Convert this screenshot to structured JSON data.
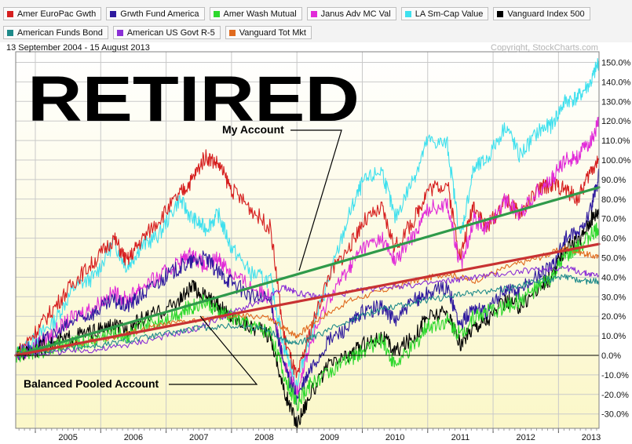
{
  "legend": {
    "row1": [
      {
        "label": "Amer EuroPac Gwth",
        "color": "#d61f1f"
      },
      {
        "label": "Grwth Fund America",
        "color": "#2e1a9e"
      },
      {
        "label": "Amer Wash Mutual",
        "color": "#2dd82d"
      },
      {
        "label": "Janus Adv MC Val",
        "color": "#e12bd8"
      },
      {
        "label": "LA Sm-Cap Value",
        "color": "#3fe0ee"
      },
      {
        "label": "Vanguard Index 500",
        "color": "#000000"
      }
    ],
    "row2": [
      {
        "label": "American Funds Bond",
        "color": "#1e8a8a"
      },
      {
        "label": "American US Govt R-5",
        "color": "#8a2fd6"
      },
      {
        "label": "Vanguard Tot Mkt",
        "color": "#e06a1e"
      }
    ]
  },
  "header": {
    "date_range": "13 September 2004 - 15 August 2013",
    "copyright": "Copyright, StockCharts.com"
  },
  "annotations": {
    "title": "RETIRED",
    "my_account": "My Account",
    "balanced": "Balanced Pooled Account"
  },
  "chart_data": {
    "type": "line",
    "title": "RETIRED",
    "x_range": [
      "2004-09-13",
      "2013-08-15"
    ],
    "x_ticks": [
      "2005",
      "2006",
      "2007",
      "2008",
      "2009",
      "2010",
      "2011",
      "2012",
      "2013"
    ],
    "y_ticks": [
      "150.0%",
      "140.0%",
      "130.0%",
      "120.0%",
      "110.0%",
      "100.0%",
      "90.0%",
      "80.0%",
      "70.0%",
      "60.0%",
      "50.0%",
      "40.0%",
      "30.0%",
      "20.0%",
      "10.0%",
      "0.0%",
      "-10.0%",
      "-20.0%",
      "-30.0%"
    ],
    "ylim": [
      -36,
      153
    ],
    "y_unit": "%",
    "grid": true,
    "legend_placement": "top",
    "series": [
      {
        "name": "LA Sm-Cap Value",
        "color": "#3fe0ee",
        "x": [
          2004.7,
          2005.0,
          2005.3,
          2005.6,
          2005.9,
          2006.2,
          2006.4,
          2006.6,
          2006.9,
          2007.2,
          2007.4,
          2007.6,
          2007.8,
          2008.0,
          2008.3,
          2008.6,
          2008.8,
          2009.0,
          2009.2,
          2009.5,
          2009.8,
          2010.0,
          2010.3,
          2010.5,
          2010.8,
          2011.0,
          2011.3,
          2011.5,
          2011.7,
          2011.9,
          2012.2,
          2012.4,
          2012.7,
          2012.9,
          2013.1,
          2013.3,
          2013.5,
          2013.62
        ],
        "y": [
          0,
          8,
          18,
          35,
          40,
          58,
          45,
          55,
          62,
          80,
          70,
          65,
          72,
          55,
          42,
          38,
          5,
          -15,
          10,
          40,
          72,
          88,
          95,
          70,
          92,
          110,
          108,
          60,
          95,
          100,
          118,
          102,
          115,
          118,
          130,
          132,
          140,
          151
        ]
      },
      {
        "name": "Amer EuroPac Gwth",
        "color": "#d61f1f",
        "x": [
          2004.7,
          2005.0,
          2005.3,
          2005.6,
          2005.9,
          2006.2,
          2006.4,
          2006.6,
          2006.9,
          2007.2,
          2007.4,
          2007.6,
          2007.8,
          2008.0,
          2008.3,
          2008.6,
          2008.8,
          2009.0,
          2009.2,
          2009.5,
          2009.8,
          2010.0,
          2010.3,
          2010.5,
          2010.8,
          2011.0,
          2011.3,
          2011.5,
          2011.7,
          2011.9,
          2012.2,
          2012.4,
          2012.7,
          2012.9,
          2013.1,
          2013.3,
          2013.5,
          2013.62
        ],
        "y": [
          0,
          12,
          25,
          38,
          48,
          60,
          48,
          58,
          70,
          82,
          90,
          102,
          98,
          85,
          75,
          65,
          10,
          -12,
          12,
          42,
          55,
          68,
          75,
          55,
          70,
          85,
          88,
          50,
          78,
          65,
          80,
          72,
          85,
          88,
          85,
          80,
          95,
          100
        ]
      },
      {
        "name": "Janus Adv MC Val",
        "color": "#e12bd8",
        "x": [
          2004.7,
          2005.0,
          2005.3,
          2005.6,
          2005.9,
          2006.2,
          2006.4,
          2006.6,
          2006.9,
          2007.2,
          2007.4,
          2007.6,
          2007.8,
          2008.0,
          2008.3,
          2008.6,
          2008.8,
          2009.0,
          2009.2,
          2009.5,
          2009.8,
          2010.0,
          2010.3,
          2010.5,
          2010.8,
          2011.0,
          2011.3,
          2011.5,
          2011.7,
          2011.9,
          2012.2,
          2012.4,
          2012.7,
          2012.9,
          2013.1,
          2013.3,
          2013.5,
          2013.62
        ],
        "y": [
          0,
          5,
          12,
          20,
          25,
          32,
          28,
          35,
          40,
          48,
          52,
          45,
          50,
          42,
          35,
          30,
          -5,
          -18,
          5,
          30,
          45,
          55,
          60,
          48,
          62,
          75,
          78,
          45,
          70,
          65,
          80,
          72,
          85,
          90,
          100,
          102,
          110,
          120
        ]
      },
      {
        "name": "Grwth Fund America",
        "color": "#2e1a9e",
        "x": [
          2004.7,
          2005.0,
          2005.3,
          2005.6,
          2005.9,
          2006.2,
          2006.4,
          2006.6,
          2006.9,
          2007.2,
          2007.4,
          2007.6,
          2007.8,
          2008.0,
          2008.3,
          2008.6,
          2008.8,
          2009.0,
          2009.2,
          2009.5,
          2009.8,
          2010.0,
          2010.3,
          2010.5,
          2010.8,
          2011.0,
          2011.3,
          2011.5,
          2011.7,
          2011.9,
          2012.2,
          2012.4,
          2012.7,
          2012.9,
          2013.1,
          2013.3,
          2013.5,
          2013.62
        ],
        "y": [
          0,
          5,
          10,
          18,
          22,
          28,
          25,
          30,
          38,
          45,
          48,
          50,
          42,
          38,
          30,
          28,
          -5,
          -22,
          -8,
          8,
          15,
          22,
          25,
          18,
          28,
          32,
          35,
          15,
          25,
          22,
          35,
          32,
          42,
          45,
          60,
          62,
          75,
          92
        ]
      },
      {
        "name": "Vanguard Index 500",
        "color": "#000000",
        "x": [
          2004.7,
          2005.0,
          2005.3,
          2005.6,
          2005.9,
          2006.2,
          2006.4,
          2006.6,
          2006.9,
          2007.2,
          2007.4,
          2007.6,
          2007.8,
          2008.0,
          2008.3,
          2008.6,
          2008.8,
          2009.0,
          2009.2,
          2009.5,
          2009.8,
          2010.0,
          2010.3,
          2010.5,
          2010.8,
          2011.0,
          2011.3,
          2011.5,
          2011.7,
          2011.9,
          2012.2,
          2012.4,
          2012.7,
          2012.9,
          2013.1,
          2013.3,
          2013.5,
          2013.62
        ],
        "y": [
          0,
          3,
          6,
          10,
          12,
          15,
          13,
          18,
          22,
          28,
          35,
          30,
          25,
          20,
          15,
          10,
          -18,
          -35,
          -20,
          -5,
          0,
          5,
          10,
          2,
          10,
          20,
          22,
          5,
          15,
          18,
          28,
          25,
          35,
          40,
          55,
          58,
          70,
          75
        ]
      },
      {
        "name": "Amer Wash Mutual",
        "color": "#2dd82d",
        "x": [
          2004.7,
          2005.0,
          2005.3,
          2005.6,
          2005.9,
          2006.2,
          2006.4,
          2006.6,
          2006.9,
          2007.2,
          2007.4,
          2007.6,
          2007.8,
          2008.0,
          2008.3,
          2008.6,
          2008.8,
          2009.0,
          2009.2,
          2009.5,
          2009.8,
          2010.0,
          2010.3,
          2010.5,
          2010.8,
          2011.0,
          2011.3,
          2011.5,
          2011.7,
          2011.9,
          2012.2,
          2012.4,
          2012.7,
          2012.9,
          2013.1,
          2013.3,
          2013.5,
          2013.62
        ],
        "y": [
          0,
          2,
          4,
          6,
          8,
          12,
          10,
          14,
          18,
          22,
          25,
          28,
          22,
          20,
          15,
          12,
          -10,
          -25,
          -15,
          -8,
          -2,
          2,
          8,
          -5,
          5,
          15,
          18,
          10,
          20,
          22,
          25,
          28,
          35,
          40,
          50,
          55,
          62,
          65
        ]
      },
      {
        "name": "Vanguard Tot Mkt",
        "color": "#e06a1e",
        "x": [
          2004.7,
          2005.0,
          2005.5,
          2006.0,
          2006.5,
          2007.0,
          2007.5,
          2008.0,
          2008.5,
          2008.8,
          2009.0,
          2009.3,
          2009.8,
          2010.3,
          2010.8,
          2011.3,
          2011.7,
          2012.2,
          2012.7,
          2013.1,
          2013.4,
          2013.62
        ],
        "y": [
          0,
          2,
          5,
          8,
          12,
          16,
          18,
          20,
          20,
          14,
          10,
          18,
          28,
          33,
          38,
          42,
          38,
          45,
          50,
          55,
          52,
          50
        ]
      },
      {
        "name": "American US Govt R-5",
        "color": "#8a2fd6",
        "x": [
          2004.7,
          2005.0,
          2005.5,
          2006.0,
          2006.5,
          2007.0,
          2007.5,
          2008.0,
          2008.5,
          2008.8,
          2009.0,
          2009.3,
          2009.8,
          2010.3,
          2010.8,
          2011.3,
          2011.7,
          2012.2,
          2012.7,
          2013.1,
          2013.4,
          2013.62
        ],
        "y": [
          0,
          1,
          2,
          3,
          6,
          10,
          14,
          22,
          28,
          35,
          32,
          30,
          32,
          35,
          36,
          38,
          40,
          42,
          44,
          45,
          42,
          41
        ]
      },
      {
        "name": "American Funds Bond",
        "color": "#1e8a8a",
        "x": [
          2004.7,
          2005.0,
          2005.5,
          2006.0,
          2006.5,
          2007.0,
          2007.5,
          2008.0,
          2008.5,
          2008.8,
          2009.0,
          2009.3,
          2009.8,
          2010.3,
          2010.8,
          2011.3,
          2011.7,
          2012.2,
          2012.7,
          2013.1,
          2013.4,
          2013.62
        ],
        "y": [
          0,
          2,
          4,
          5,
          8,
          11,
          14,
          15,
          14,
          8,
          6,
          10,
          18,
          24,
          27,
          30,
          32,
          34,
          38,
          40,
          38,
          38
        ]
      }
    ],
    "overlays": [
      {
        "label": "My Account",
        "color": "#2f9a4a",
        "x": [
          2004.7,
          2013.62
        ],
        "y": [
          0,
          86
        ]
      },
      {
        "label": "Balanced Pooled Account",
        "color": "#c83232",
        "x": [
          2004.7,
          2013.62
        ],
        "y": [
          0,
          57
        ]
      }
    ]
  }
}
